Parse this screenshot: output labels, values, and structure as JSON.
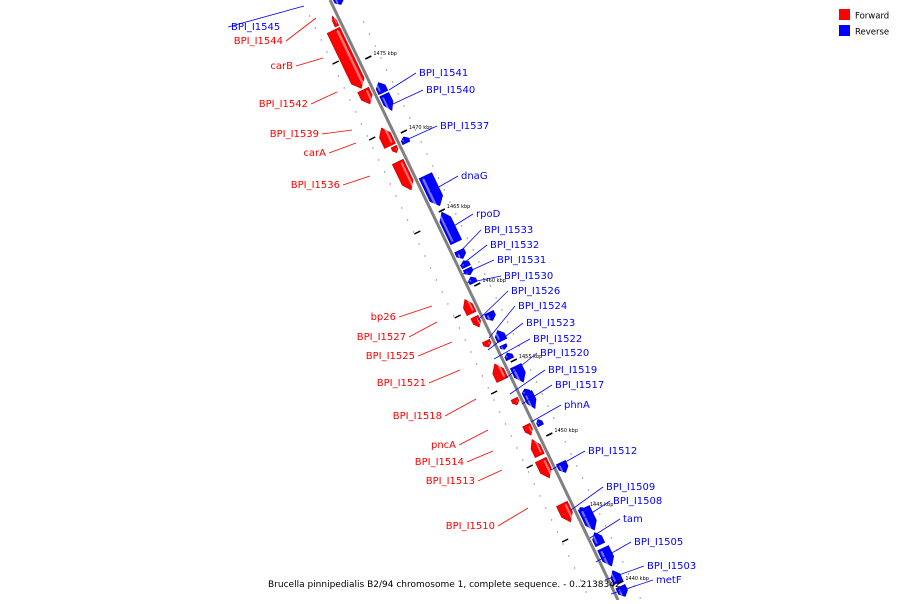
{
  "colors": {
    "forward": "#ff0000",
    "reverse": "#0000ff",
    "axis": "#808080"
  },
  "legend": {
    "forward_label": "Forward",
    "forward_color": "#ff0000",
    "reverse_label": "Reverse",
    "reverse_color": "#0000ff"
  },
  "caption": "Brucella pinnipedialis B2/94 chromosome 1, complete sequence. - 0..2138342",
  "ticks": [
    "1475 kbp",
    "1470 kbp",
    "1465 kbp",
    "1460 kbp",
    "1455 kbp",
    "1450 kbp",
    "1445 kbp",
    "1440 kbp"
  ],
  "genes_forward": [
    "BPI_I1544",
    "carB",
    "BPI_I1542",
    "BPI_I1539",
    "carA",
    "BPI_I1536",
    "bp26",
    "BPI_I1527",
    "BPI_I1525",
    "BPI_I1521",
    "BPI_I1518",
    "pncA",
    "BPI_I1514",
    "BPI_I1513",
    "BPI_I1510"
  ],
  "genes_reverse": [
    "BPI_I1545",
    "BPI_I1541",
    "BPI_I1540",
    "BPI_I1537",
    "dnaG",
    "rpoD",
    "BPI_I1533",
    "BPI_I1532",
    "BPI_I1531",
    "BPI_I1530",
    "BPI_I1526",
    "BPI_I1524",
    "BPI_I1523",
    "BPI_I1522",
    "BPI_I1520",
    "BPI_I1519",
    "BPI_I1517",
    "phnA",
    "BPI_I1512",
    "BPI_I1509",
    "BPI_I1508",
    "tam",
    "BPI_I1505",
    "BPI_I1503",
    "metF"
  ]
}
